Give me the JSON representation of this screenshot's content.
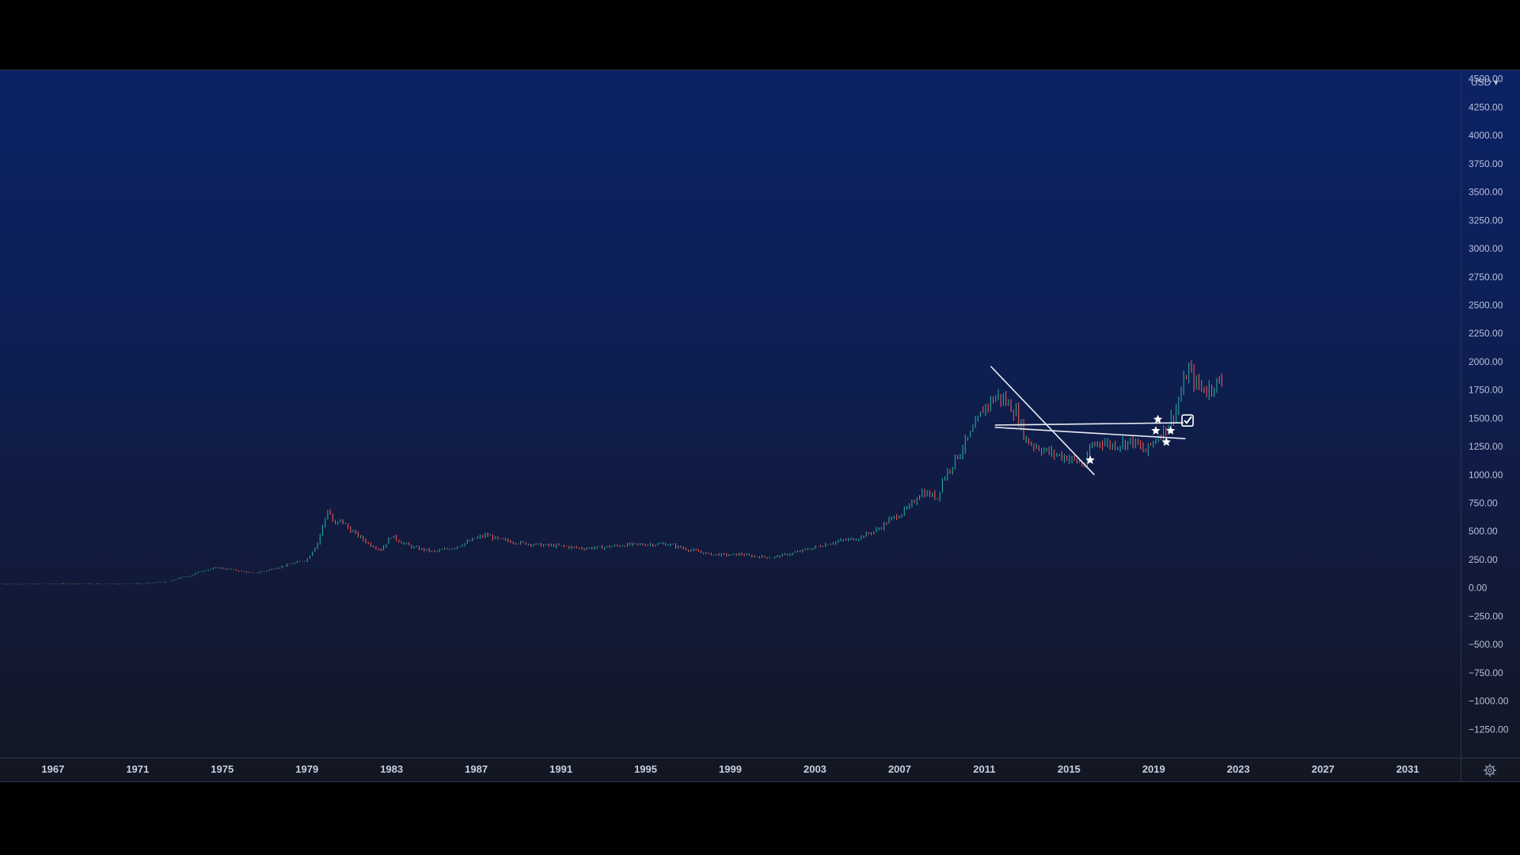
{
  "price_scale": {
    "currency_label": "USD ▾"
  },
  "chart_data": {
    "type": "candlestick-line",
    "title": "",
    "xlabel": "",
    "ylabel": "",
    "x_range": [
      1964.5,
      2033.5
    ],
    "y_range": [
      -1500,
      4575
    ],
    "y_ticks": [
      "4500.00",
      "4250.00",
      "4000.00",
      "3750.00",
      "3500.00",
      "3250.00",
      "3000.00",
      "2750.00",
      "2500.00",
      "2250.00",
      "2000.00",
      "1750.00",
      "1500.00",
      "1250.00",
      "1000.00",
      "750.00",
      "500.00",
      "250.00",
      "0.00",
      "−250.00",
      "−500.00",
      "−750.00",
      "−1000.00",
      "−1250.00"
    ],
    "y_tick_values": [
      4500,
      4250,
      4000,
      3750,
      3500,
      3250,
      3000,
      2750,
      2500,
      2250,
      2000,
      1750,
      1500,
      1250,
      1000,
      750,
      500,
      250,
      0,
      -250,
      -500,
      -750,
      -1000,
      -1250
    ],
    "x_ticks": [
      "1967",
      "1971",
      "1975",
      "1979",
      "1983",
      "1987",
      "1991",
      "1995",
      "1999",
      "2003",
      "2007",
      "2011",
      "2015",
      "2019",
      "2023",
      "2027",
      "2031"
    ],
    "x_tick_values": [
      1967,
      1971,
      1975,
      1979,
      1983,
      1987,
      1991,
      1995,
      1999,
      2003,
      2007,
      2011,
      2015,
      2019,
      2023,
      2027,
      2031
    ],
    "grid": false,
    "up_color": "#26a69a",
    "down_color": "#ef5350",
    "series": [
      {
        "x": [
          1964.5,
          1966,
          1968,
          1970,
          1971.5,
          1972.5,
          1973,
          1973.5,
          1974,
          1974.8,
          1975.5,
          1976.5,
          1977,
          1978,
          1979,
          1979.5,
          1980,
          1980.3,
          1980.6,
          1981,
          1981.5,
          1982,
          1982.5,
          1983,
          1983.5,
          1984,
          1985,
          1986,
          1987,
          1987.5,
          1988,
          1989,
          1990,
          1991,
          1992,
          1993,
          1993.5,
          1994,
          1995,
          1996,
          1997,
          1998,
          1999,
          1999.5,
          2000,
          2001,
          2002,
          2003,
          2004,
          2005,
          2006,
          2006.5,
          2007,
          2007.5,
          2008,
          2008.8,
          2009,
          2009.5,
          2010,
          2010.5,
          2011,
          2011.6,
          2012,
          2012.5,
          2013,
          2013.5,
          2014,
          2015,
          2015.8,
          2016,
          2016.5,
          2017,
          2018,
          2018.6,
          2019,
          2019.5,
          2020,
          2020.5,
          2020.6,
          2021,
          2021.5,
          2022,
          2022.3
        ],
        "close": [
          35,
          35,
          38,
          36,
          40,
          58,
          90,
          110,
          150,
          180,
          160,
          130,
          150,
          200,
          250,
          400,
          700,
          550,
          600,
          520,
          450,
          380,
          340,
          460,
          400,
          360,
          320,
          360,
          440,
          470,
          430,
          400,
          380,
          370,
          350,
          360,
          370,
          380,
          385,
          390,
          340,
          300,
          290,
          300,
          280,
          270,
          310,
          360,
          410,
          440,
          520,
          600,
          650,
          720,
          850,
          800,
          950,
          1100,
          1250,
          1400,
          1600,
          1700,
          1650,
          1550,
          1300,
          1250,
          1200,
          1150,
          1080,
          1250,
          1300,
          1260,
          1300,
          1200,
          1300,
          1400,
          1550,
          1850,
          1950,
          1800,
          1750,
          1820,
          1800
        ]
      }
    ],
    "annotations": {
      "trendline_1": {
        "from": [
          2011.3,
          1960
        ],
        "to": [
          2016.2,
          1000
        ]
      },
      "trendline_2": {
        "from": [
          2011.5,
          1420
        ],
        "to": [
          2020.5,
          1320
        ]
      },
      "trendline_3": {
        "from": [
          2011.5,
          1440
        ],
        "to": [
          2020.4,
          1460
        ]
      },
      "stars": [
        [
          2016.0,
          1130
        ],
        [
          2019.2,
          1490
        ],
        [
          2019.1,
          1390
        ],
        [
          2019.8,
          1390
        ],
        [
          2019.6,
          1290
        ]
      ],
      "checkmark": [
        2020.6,
        1480
      ]
    }
  }
}
